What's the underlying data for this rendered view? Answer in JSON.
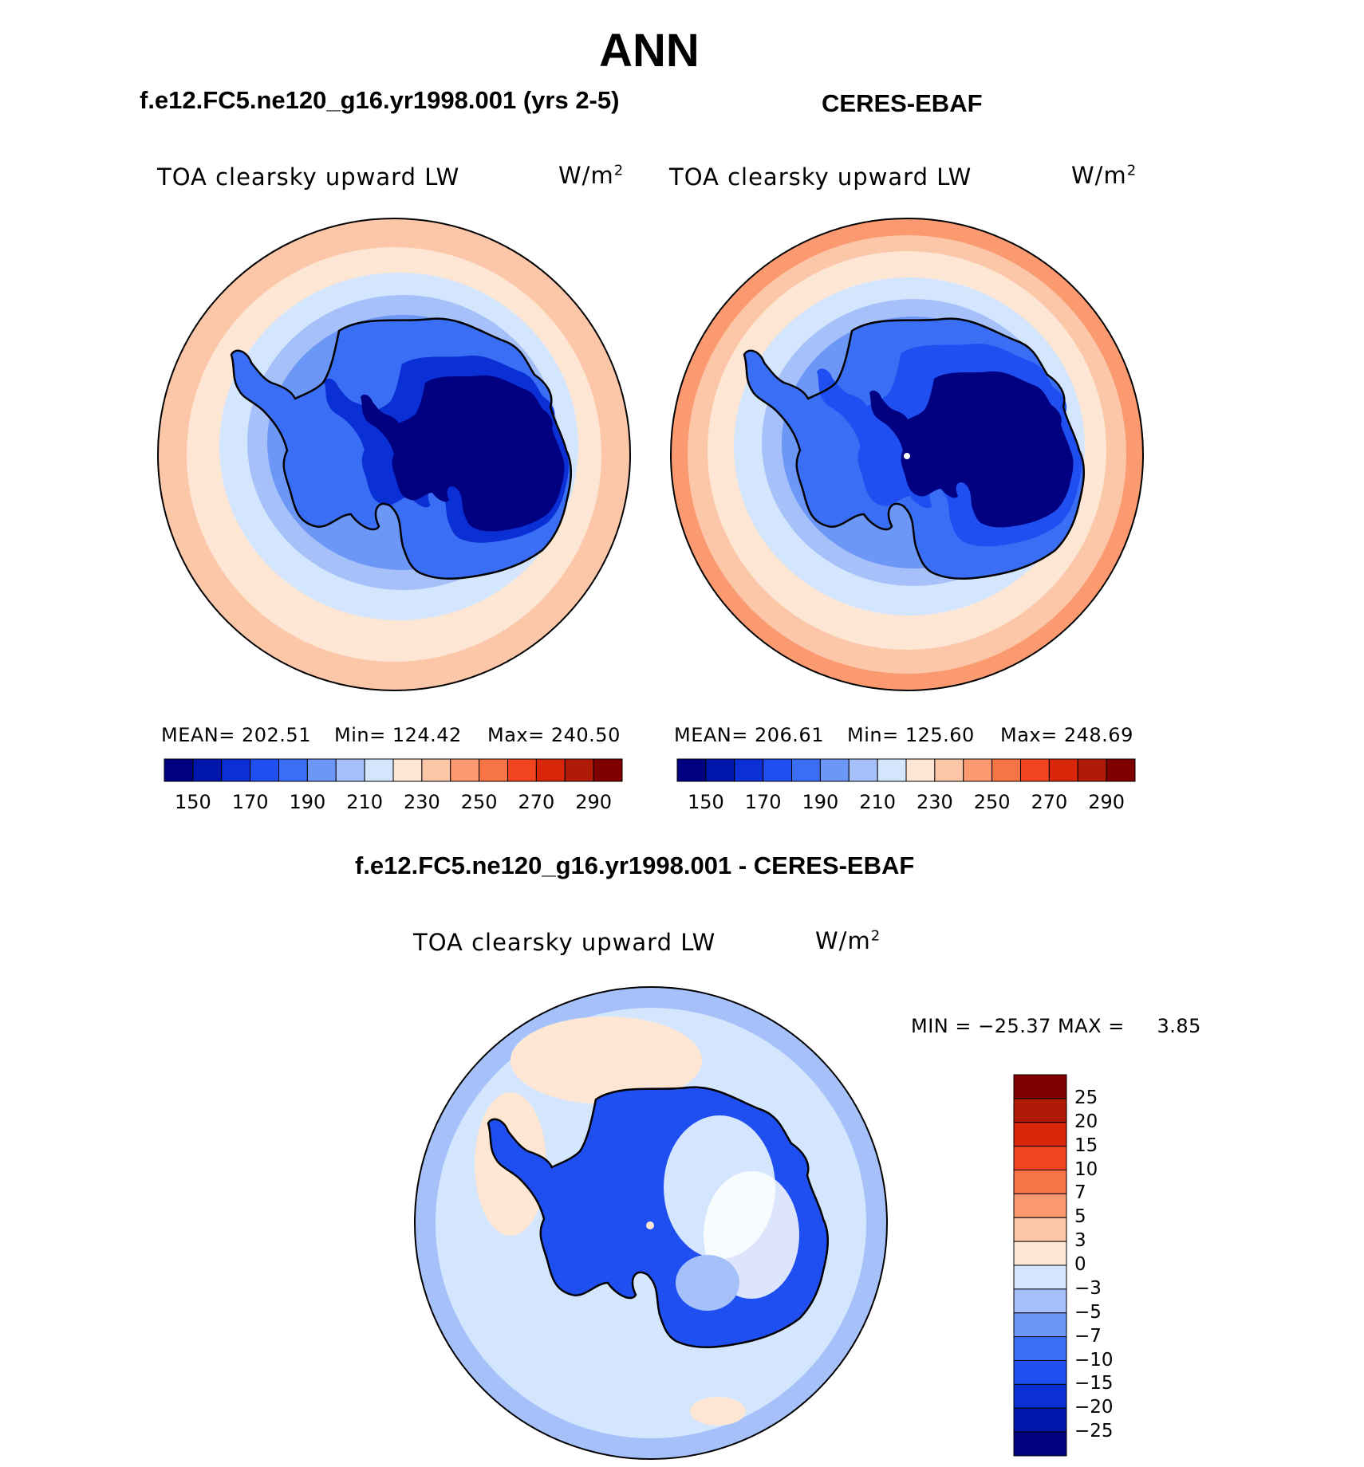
{
  "figure": {
    "title": "ANN",
    "panel_left": {
      "title": "f.e12.FC5.ne120_g16.yr1998.001 (yrs 2-5)",
      "variable": "TOA clearsky upward LW",
      "units_base": "W/m",
      "units_exp": "2",
      "stats": {
        "mean": "MEAN= 202.51",
        "min": "Min= 124.42",
        "max": "Max= 240.50"
      }
    },
    "panel_right": {
      "title": "CERES-EBAF",
      "variable": "TOA clearsky upward LW",
      "units_base": "W/m",
      "units_exp": "2",
      "stats": {
        "mean": "MEAN= 206.61",
        "min": "Min= 125.60",
        "max": "Max= 248.69"
      }
    },
    "panel_diff": {
      "title": "f.e12.FC5.ne120_g16.yr1998.001 - CERES-EBAF",
      "variable": "TOA clearsky upward LW",
      "units_base": "W/m",
      "units_exp": "2",
      "minmax": "MIN = −25.37 MAX =     3.85"
    },
    "colorbar_main": {
      "colors": [
        "#000080",
        "#0015aa",
        "#0a2fd4",
        "#1f4ff0",
        "#3a6ef5",
        "#6c97f7",
        "#a6c1fa",
        "#d4e6fd",
        "#fde6d3",
        "#fcc6a8",
        "#fb9a71",
        "#f77446",
        "#f2441e",
        "#d9270c",
        "#b01b07",
        "#7f0000"
      ],
      "tick_labels": [
        "150",
        "170",
        "190",
        "210",
        "230",
        "250",
        "270",
        "290"
      ]
    },
    "colorbar_diff": {
      "colors": [
        "#7f0000",
        "#b01b07",
        "#d9270c",
        "#f2441e",
        "#f77446",
        "#fb9a71",
        "#fcc6a8",
        "#fde6d3",
        "#d4e6fd",
        "#a6c1fa",
        "#6c97f7",
        "#3a6ef5",
        "#1f4ff0",
        "#0a2fd4",
        "#0015aa",
        "#000080"
      ],
      "tick_labels": [
        "25",
        "20",
        "15",
        "10",
        "7",
        "5",
        "3",
        "0",
        "−3",
        "−5",
        "−7",
        "−10",
        "−15",
        "−20",
        "−25"
      ]
    }
  }
}
